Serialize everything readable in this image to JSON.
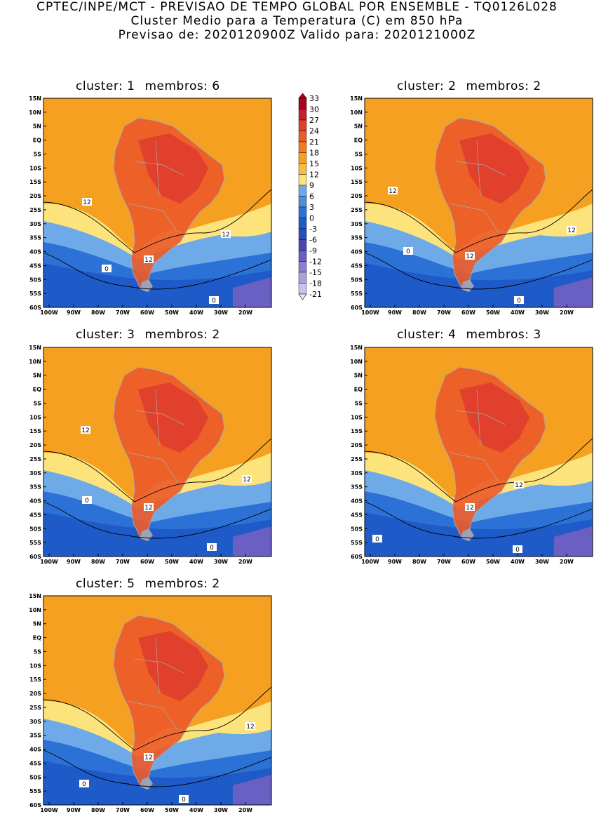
{
  "header": {
    "line1": "CPTEC/INPE/MCT - PREVISAO DE TEMPO GLOBAL POR ENSEMBLE - TQ0126L028",
    "line2": "Cluster Medio para a Temperatura (C) em 850 hPa",
    "line3": "Previsao de: 2020120900Z   Valido para: 2020121000Z"
  },
  "axes": {
    "lat_labels": [
      "15N",
      "10N",
      "5N",
      "EQ",
      "5S",
      "10S",
      "15S",
      "20S",
      "25S",
      "30S",
      "35S",
      "40S",
      "45S",
      "50S",
      "55S",
      "60S"
    ],
    "lon_labels": [
      "100W",
      "90W",
      "80W",
      "70W",
      "60W",
      "50W",
      "40W",
      "30W",
      "20W"
    ]
  },
  "colorbar": {
    "levels": [
      "33",
      "30",
      "27",
      "24",
      "21",
      "18",
      "15",
      "12",
      "9",
      "6",
      "3",
      "0",
      "-3",
      "-6",
      "-9",
      "-12",
      "-15",
      "-18",
      "-21"
    ],
    "colors": [
      "#a8001e",
      "#c5202c",
      "#e0402c",
      "#ec5a2a",
      "#f47a20",
      "#f5a020",
      "#f8bd3e",
      "#fde37c",
      "#6faae8",
      "#4a8ee0",
      "#2c72d6",
      "#1f5bc8",
      "#2d4fb8",
      "#4a47b4",
      "#6a5fc2",
      "#8b7fd0",
      "#ad9ede",
      "#cfc0ec"
    ]
  },
  "clusters": [
    {
      "label": "cluster: 1",
      "members": "membros: 6",
      "contour_labels": [
        "12",
        "12",
        "12",
        "0",
        "0"
      ]
    },
    {
      "label": "cluster: 2",
      "members": "membros: 2",
      "contour_labels": [
        "12",
        "12",
        "12",
        "0",
        "0"
      ]
    },
    {
      "label": "cluster: 3",
      "members": "membros: 2",
      "contour_labels": [
        "12",
        "12",
        "12",
        "0",
        "0"
      ]
    },
    {
      "label": "cluster: 4",
      "members": "membros: 3",
      "contour_labels": [
        "12",
        "12",
        "0",
        "0"
      ]
    },
    {
      "label": "cluster: 5",
      "members": "membros: 2",
      "contour_labels": [
        "12",
        "12",
        "0",
        "0"
      ]
    }
  ]
}
